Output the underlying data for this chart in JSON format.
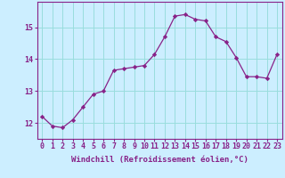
{
  "x": [
    0,
    1,
    2,
    3,
    4,
    5,
    6,
    7,
    8,
    9,
    10,
    11,
    12,
    13,
    14,
    15,
    16,
    17,
    18,
    19,
    20,
    21,
    22,
    23
  ],
  "y": [
    12.2,
    11.9,
    11.85,
    12.1,
    12.5,
    12.9,
    13.0,
    13.65,
    13.7,
    13.75,
    13.8,
    14.15,
    14.7,
    15.35,
    15.4,
    15.25,
    15.2,
    14.7,
    14.55,
    14.05,
    13.45,
    13.45,
    13.4,
    14.15
  ],
  "line_color": "#882288",
  "marker": "D",
  "markersize": 2.2,
  "linewidth": 0.9,
  "bg_color": "#cceeff",
  "grid_color": "#99dddd",
  "xlabel": "Windchill (Refroidissement éolien,°C)",
  "xlabel_fontsize": 6.5,
  "xtick_labels": [
    "0",
    "1",
    "2",
    "3",
    "4",
    "5",
    "6",
    "7",
    "8",
    "9",
    "10",
    "11",
    "12",
    "13",
    "14",
    "15",
    "16",
    "17",
    "18",
    "19",
    "20",
    "21",
    "22",
    "23"
  ],
  "yticks": [
    12,
    13,
    14,
    15
  ],
  "ylim": [
    11.5,
    15.8
  ],
  "xlim": [
    -0.5,
    23.5
  ],
  "tick_color": "#882288",
  "tick_fontsize": 6.0,
  "spine_color": "#882288"
}
